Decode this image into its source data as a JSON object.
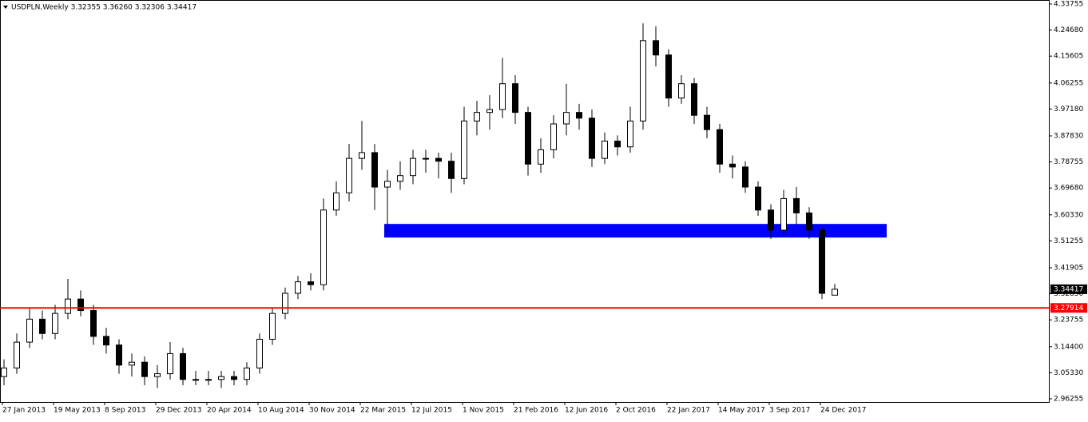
{
  "chart_data": {
    "type": "candlestick",
    "title": "USDPLN,Weekly  3.32355 3.36260 3.32306 3.34417",
    "categories": [
      "27 Jan 2013",
      null,
      null,
      null,
      "19 May 2013",
      null,
      null,
      null,
      "8 Sep 2013",
      null,
      null,
      null,
      "29 Dec 2013",
      null,
      null,
      null,
      "20 Apr 2014",
      null,
      null,
      null,
      "10 Aug 2014",
      null,
      null,
      null,
      "30 Nov 2014",
      null,
      null,
      null,
      "22 Mar 2015",
      null,
      null,
      null,
      "12 Jul 2015",
      null,
      null,
      null,
      "1 Nov 2015",
      null,
      null,
      null,
      "21 Feb 2016",
      null,
      null,
      null,
      "12 Jun 2016",
      null,
      null,
      null,
      "2 Oct 2016",
      null,
      null,
      null,
      "22 Jan 2017",
      null,
      null,
      null,
      "14 May 2017",
      null,
      null,
      null,
      "3 Sep 2017",
      null,
      null,
      null,
      "24 Dec 2017",
      null
    ],
    "open": [
      3.04,
      3.07,
      3.16,
      3.24,
      3.19,
      3.26,
      3.31,
      3.27,
      3.18,
      3.15,
      3.08,
      3.09,
      3.04,
      3.05,
      3.12,
      3.03,
      3.03,
      3.03,
      3.04,
      3.03,
      3.07,
      3.17,
      3.26,
      3.33,
      3.37,
      3.36,
      3.62,
      3.68,
      3.8,
      3.82,
      3.7,
      3.72,
      3.74,
      3.8,
      3.8,
      3.79,
      3.73,
      3.93,
      3.96,
      3.97,
      4.06,
      3.96,
      3.78,
      3.83,
      3.92,
      3.96,
      3.94,
      3.8,
      3.86,
      3.84,
      3.93,
      4.21,
      4.16,
      4.01,
      4.06,
      3.95,
      3.9,
      3.78,
      3.77,
      3.7,
      3.62,
      3.55,
      3.66,
      3.61,
      3.55,
      3.32355
    ],
    "high": [
      3.1,
      3.19,
      3.28,
      3.27,
      3.29,
      3.38,
      3.34,
      3.29,
      3.21,
      3.17,
      3.12,
      3.11,
      3.08,
      3.16,
      3.14,
      3.06,
      3.06,
      3.06,
      3.06,
      3.09,
      3.19,
      3.28,
      3.35,
      3.39,
      3.4,
      3.66,
      3.72,
      3.85,
      3.93,
      3.85,
      3.76,
      3.79,
      3.83,
      3.83,
      3.82,
      3.82,
      3.98,
      4.0,
      4.02,
      4.15,
      4.09,
      3.98,
      3.87,
      3.95,
      4.06,
      3.99,
      3.97,
      3.89,
      3.88,
      3.98,
      4.27,
      4.26,
      4.18,
      4.09,
      4.08,
      3.98,
      3.92,
      3.81,
      3.79,
      3.72,
      3.64,
      3.69,
      3.7,
      3.63,
      3.56,
      3.3626
    ],
    "low": [
      3.01,
      3.05,
      3.14,
      3.17,
      3.17,
      3.24,
      3.25,
      3.15,
      3.12,
      3.05,
      3.04,
      3.01,
      3.0,
      3.03,
      3.01,
      3.01,
      3.01,
      3.0,
      3.01,
      3.01,
      3.05,
      3.15,
      3.24,
      3.31,
      3.34,
      3.34,
      3.6,
      3.65,
      3.76,
      3.62,
      3.54,
      3.69,
      3.71,
      3.75,
      3.73,
      3.68,
      3.71,
      3.88,
      3.9,
      3.94,
      3.92,
      3.74,
      3.75,
      3.8,
      3.88,
      3.9,
      3.77,
      3.78,
      3.81,
      3.82,
      3.9,
      4.12,
      3.98,
      3.99,
      3.92,
      3.87,
      3.75,
      3.73,
      3.68,
      3.6,
      3.52,
      3.53,
      3.57,
      3.52,
      3.31,
      3.32306
    ],
    "close": [
      3.07,
      3.16,
      3.24,
      3.19,
      3.26,
      3.31,
      3.27,
      3.18,
      3.15,
      3.08,
      3.09,
      3.04,
      3.05,
      3.12,
      3.03,
      3.03,
      3.03,
      3.04,
      3.03,
      3.07,
      3.17,
      3.26,
      3.33,
      3.37,
      3.36,
      3.62,
      3.68,
      3.8,
      3.82,
      3.7,
      3.72,
      3.74,
      3.8,
      3.8,
      3.79,
      3.73,
      3.93,
      3.96,
      3.97,
      4.06,
      3.96,
      3.78,
      3.83,
      3.92,
      3.96,
      3.94,
      3.8,
      3.86,
      3.84,
      3.93,
      4.21,
      4.16,
      4.01,
      4.06,
      3.95,
      3.9,
      3.78,
      3.77,
      3.7,
      3.62,
      3.55,
      3.66,
      3.61,
      3.55,
      3.33,
      3.34417
    ],
    "ylim": [
      2.96255,
      4.33755
    ],
    "yticks": [
      {
        "value": 4.33755,
        "label": "4.33755"
      },
      {
        "value": 4.2468,
        "label": "4.24680"
      },
      {
        "value": 4.15605,
        "label": "4.15605"
      },
      {
        "value": 4.06255,
        "label": "4.06255"
      },
      {
        "value": 3.9718,
        "label": "3.97180"
      },
      {
        "value": 3.8783,
        "label": "3.87830"
      },
      {
        "value": 3.78755,
        "label": "3.78755"
      },
      {
        "value": 3.6968,
        "label": "3.69680"
      },
      {
        "value": 3.6033,
        "label": "3.60330"
      },
      {
        "value": 3.51255,
        "label": "3.51255"
      },
      {
        "value": 3.41905,
        "label": "3.41905"
      },
      {
        "value": 3.3285,
        "label": "3.32850"
      },
      {
        "value": 3.23755,
        "label": "3.23755"
      },
      {
        "value": 3.144,
        "label": "3.14400"
      },
      {
        "value": 3.0533,
        "label": "3.05330"
      },
      {
        "value": 2.96255,
        "label": "2.96255"
      }
    ],
    "zone": {
      "high": 3.5716,
      "low": 3.5242,
      "color": "#0000ff"
    },
    "level": {
      "value": 3.27914,
      "label": "3.27914",
      "color": "#ff0000"
    },
    "last": {
      "value": 3.34417,
      "label": "3.34417"
    }
  }
}
